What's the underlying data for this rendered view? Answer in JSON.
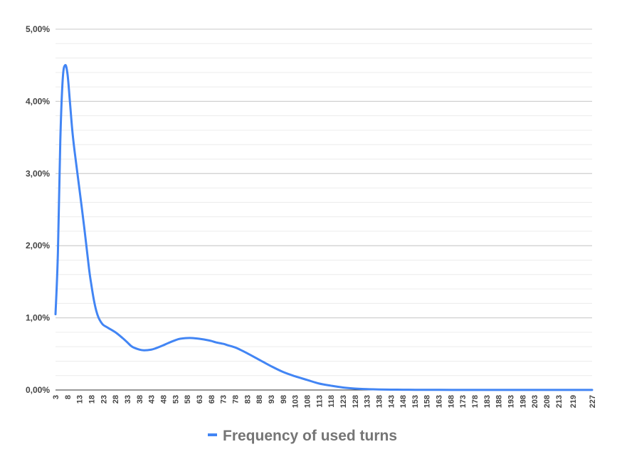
{
  "chart_data": {
    "type": "line",
    "title": "",
    "xlabel": "",
    "ylabel": "",
    "ylim": [
      0,
      5
    ],
    "y_unit": "%",
    "y_ticks": [
      "0,00%",
      "1,00%",
      "2,00%",
      "3,00%",
      "4,00%",
      "5,00%"
    ],
    "y_tick_values": [
      0,
      1,
      2,
      3,
      4,
      5
    ],
    "minor_gridlines": true,
    "x_range": [
      3,
      227
    ],
    "x_ticks": [
      "3",
      "8",
      "13",
      "18",
      "23",
      "28",
      "33",
      "38",
      "43",
      "48",
      "53",
      "58",
      "63",
      "68",
      "73",
      "78",
      "83",
      "88",
      "93",
      "98",
      "103",
      "108",
      "113",
      "118",
      "123",
      "128",
      "133",
      "138",
      "143",
      "148",
      "153",
      "158",
      "163",
      "168",
      "173",
      "178",
      "183",
      "188",
      "193",
      "198",
      "203",
      "208",
      "213",
      "219",
      "227"
    ],
    "x_tick_values": [
      3,
      8,
      13,
      18,
      23,
      28,
      33,
      38,
      43,
      48,
      53,
      58,
      63,
      68,
      73,
      78,
      83,
      88,
      93,
      98,
      103,
      108,
      113,
      118,
      123,
      128,
      133,
      138,
      143,
      148,
      153,
      158,
      163,
      168,
      173,
      178,
      183,
      188,
      193,
      198,
      203,
      208,
      213,
      219,
      227
    ],
    "legend_position": "bottom",
    "series": [
      {
        "name": "Frequency of used turns",
        "color": "#4285F4",
        "x": [
          3,
          4,
          5,
          6,
          7,
          8,
          9,
          10,
          11,
          13,
          15,
          17,
          18,
          19,
          20,
          21,
          22,
          23,
          25,
          28,
          31,
          33,
          35,
          38,
          40,
          43,
          45,
          48,
          50,
          53,
          55,
          58,
          60,
          63,
          65,
          68,
          70,
          73,
          75,
          78,
          80,
          83,
          88,
          93,
          98,
          103,
          108,
          113,
          118,
          123,
          128,
          133,
          138,
          143,
          148,
          153,
          158,
          163,
          173,
          183,
          193,
          203,
          213,
          219,
          227
        ],
        "y": [
          1.05,
          1.9,
          3.45,
          4.3,
          4.5,
          4.38,
          4.0,
          3.6,
          3.3,
          2.78,
          2.25,
          1.68,
          1.45,
          1.25,
          1.1,
          1.0,
          0.94,
          0.9,
          0.86,
          0.8,
          0.72,
          0.66,
          0.6,
          0.56,
          0.55,
          0.56,
          0.58,
          0.62,
          0.65,
          0.69,
          0.71,
          0.72,
          0.72,
          0.71,
          0.7,
          0.68,
          0.66,
          0.64,
          0.62,
          0.59,
          0.56,
          0.51,
          0.42,
          0.33,
          0.25,
          0.19,
          0.14,
          0.09,
          0.06,
          0.035,
          0.02,
          0.012,
          0.008,
          0.005,
          0.004,
          0.003,
          0.002,
          0.002,
          0.001,
          0.001,
          0.001,
          0.001,
          0.001,
          0.001,
          0.001
        ]
      }
    ]
  }
}
